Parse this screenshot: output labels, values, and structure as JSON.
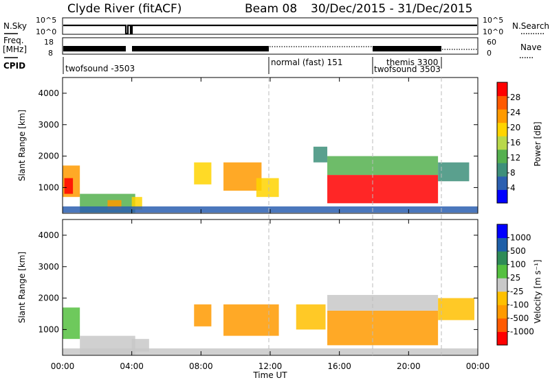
{
  "header": {
    "station": "Clyde River (fitACF)",
    "beam": "Beam 08",
    "date_range": "30/Dec/2015 - 31/Dec/2015"
  },
  "strip_labels": {
    "nsky": "N.Sky",
    "nsearch": "N.Search",
    "freq": "Freq.",
    "freq_unit": "[MHz]",
    "nave": "Nave",
    "cpid": "CPID"
  },
  "strip_ticks": {
    "noise_left": [
      "10^5",
      "10^0"
    ],
    "noise_right": [
      "10^5",
      "10^0"
    ],
    "freq_left": [
      "18",
      "8"
    ],
    "freq_right": [
      "60",
      "0"
    ]
  },
  "cpid_blocks": [
    {
      "label": "twofsound -3503"
    },
    {
      "label": "normal (fast) 151"
    },
    {
      "label": "themis 3300"
    },
    {
      "label": "twofsound 3503"
    }
  ],
  "colors": {
    "power_scale": [
      "#0000ff",
      "#2b5fb0",
      "#3d8f7a",
      "#55b04f",
      "#b8d84a",
      "#ffd400",
      "#ff9a00",
      "#ff5a00",
      "#ff0000"
    ],
    "velocity_scale": [
      "#ff0000",
      "#ff5a00",
      "#ff9a00",
      "#ffc000",
      "#c8c8c8",
      "#55c040",
      "#2e8b57",
      "#1e5fa8",
      "#0000ff"
    ]
  },
  "chart_data": [
    {
      "type": "heatmap",
      "title": "Power",
      "ylabel": "Slant Range [km]",
      "xlabel": "",
      "x_ticks": [
        "00:00",
        "04:00",
        "08:00",
        "12:00",
        "16:00",
        "20:00",
        "00:00"
      ],
      "y_ticks": [
        "1000",
        "2000",
        "3000",
        "4000"
      ],
      "ylim": [
        180,
        4500
      ],
      "colorbar_label": "Power [dB]",
      "colorbar_ticks": [
        "4",
        "8",
        "12",
        "16",
        "20",
        "24",
        "28"
      ],
      "colorbar_range": [
        0,
        32
      ],
      "patches": [
        {
          "t0": 0.0,
          "t1": 1.0,
          "r0": 700,
          "r1": 1700,
          "v": 24
        },
        {
          "t0": 0.1,
          "t1": 0.6,
          "r0": 800,
          "r1": 1300,
          "v": 30
        },
        {
          "t0": 1.0,
          "t1": 4.2,
          "r0": 200,
          "r1": 800,
          "v": 12
        },
        {
          "t0": 2.6,
          "t1": 3.4,
          "r0": 300,
          "r1": 600,
          "v": 22
        },
        {
          "t0": 4.0,
          "t1": 4.6,
          "r0": 300,
          "r1": 700,
          "v": 18
        },
        {
          "t0": 7.6,
          "t1": 8.6,
          "r0": 1100,
          "r1": 1800,
          "v": 20
        },
        {
          "t0": 9.3,
          "t1": 11.5,
          "r0": 900,
          "r1": 1800,
          "v": 22
        },
        {
          "t0": 11.2,
          "t1": 12.5,
          "r0": 700,
          "r1": 1300,
          "v": 20
        },
        {
          "t0": 14.5,
          "t1": 15.3,
          "r0": 1800,
          "r1": 2300,
          "v": 10
        },
        {
          "t0": 15.3,
          "t1": 21.7,
          "r0": 500,
          "r1": 1400,
          "v": 30
        },
        {
          "t0": 15.3,
          "t1": 21.7,
          "r0": 1400,
          "r1": 2000,
          "v": 14
        },
        {
          "t0": 21.7,
          "t1": 23.5,
          "r0": 1200,
          "r1": 1800,
          "v": 10
        },
        {
          "t0": 0.0,
          "t1": 24.0,
          "r0": 200,
          "r1": 400,
          "v": 6
        }
      ]
    },
    {
      "type": "heatmap",
      "title": "Velocity",
      "ylabel": "Slant Range [km]",
      "xlabel": "Time UT",
      "x_ticks": [
        "00:00",
        "04:00",
        "08:00",
        "12:00",
        "16:00",
        "20:00",
        "00:00"
      ],
      "y_ticks": [
        "1000",
        "2000",
        "3000",
        "4000"
      ],
      "ylim": [
        180,
        4500
      ],
      "colorbar_label": "Velocity [m s⁻¹]",
      "colorbar_ticks": [
        "-1000",
        "-500",
        "-100",
        "-25",
        "25",
        "100",
        "500",
        "1000"
      ],
      "colorbar_range": [
        -1200,
        1200
      ],
      "patches": [
        {
          "t0": 0.0,
          "t1": 1.0,
          "r0": 700,
          "r1": 1700,
          "v": 200
        },
        {
          "t0": 1.0,
          "t1": 4.2,
          "r0": 200,
          "r1": 800,
          "v": 50
        },
        {
          "t0": 4.0,
          "t1": 5.0,
          "r0": 300,
          "r1": 700,
          "v": 0
        },
        {
          "t0": 7.6,
          "t1": 8.6,
          "r0": 1100,
          "r1": 1800,
          "v": -500
        },
        {
          "t0": 9.3,
          "t1": 12.5,
          "r0": 800,
          "r1": 1800,
          "v": -500
        },
        {
          "t0": 13.5,
          "t1": 15.2,
          "r0": 1000,
          "r1": 1800,
          "v": -300
        },
        {
          "t0": 15.3,
          "t1": 21.7,
          "r0": 500,
          "r1": 1600,
          "v": -500
        },
        {
          "t0": 15.3,
          "t1": 21.7,
          "r0": 1600,
          "r1": 2100,
          "v": 10
        },
        {
          "t0": 21.7,
          "t1": 23.8,
          "r0": 1300,
          "r1": 2000,
          "v": -400
        },
        {
          "t0": 0.0,
          "t1": 24.0,
          "r0": 200,
          "r1": 400,
          "v": 20
        }
      ]
    }
  ]
}
